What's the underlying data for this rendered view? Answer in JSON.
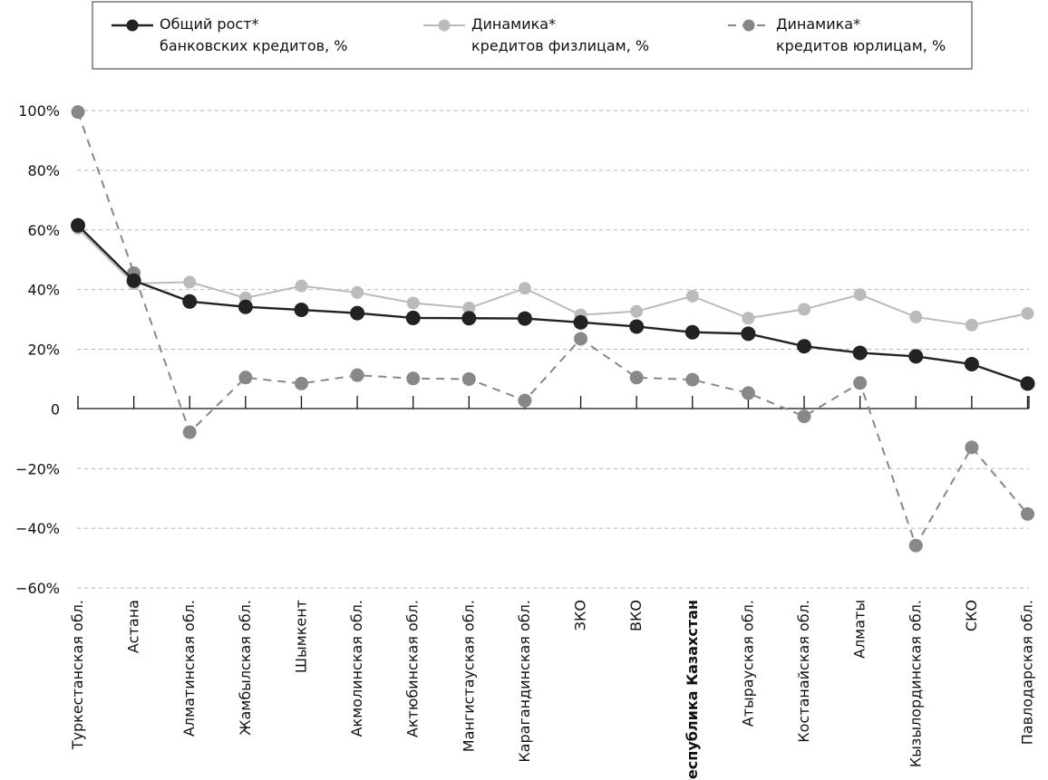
{
  "chart_data": {
    "type": "line",
    "categories": [
      "Туркестанская обл.",
      "Астана",
      "Алматинская обл.",
      "Жамбылская обл.",
      "Шымкент",
      "Акмолинская обл.",
      "Актюбинская обл.",
      "Мангистауская обл.",
      "Карагандинская обл.",
      "ЗКО",
      "ВКО",
      "Республика Казахстан",
      "Атырауская обл.",
      "Костанайская обл.",
      "Алматы",
      "Кызылординская обл.",
      "СКО",
      "Павлодарская обл."
    ],
    "highlight_category": "Республика Казахстан",
    "ylim": [
      -60,
      100
    ],
    "yticks": [
      -60,
      -40,
      -20,
      0,
      20,
      40,
      60,
      80,
      100
    ],
    "ytick_labels": [
      "−60%",
      "−40%",
      "−20%",
      "0",
      "20%",
      "40%",
      "60%",
      "80%",
      "100%"
    ],
    "grid": "horizontal dashed",
    "legend_position": "top",
    "series": [
      {
        "name": "Общий рост* банковских кредитов, %",
        "legend_lines": [
          "Общий рост*",
          "банковских кредитов, %"
        ],
        "style": "solid",
        "color": "#222222",
        "values": [
          61.5,
          43,
          36,
          34.2,
          33.2,
          32.1,
          30.5,
          30.4,
          30.3,
          29,
          27.6,
          25.7,
          25.2,
          21,
          18.8,
          17.6,
          15,
          8.5
        ]
      },
      {
        "name": "Динамика* кредитов физлицам, %",
        "legend_lines": [
          "Динамика*",
          "кредитов физлицам, %"
        ],
        "style": "solid",
        "color": "#bbbbbb",
        "values": [
          60.5,
          42,
          42.5,
          37.2,
          41.2,
          39,
          35.5,
          33.8,
          40.4,
          31.5,
          32.7,
          37.8,
          30.4,
          33.4,
          38.3,
          30.8,
          28.1,
          32
        ]
      },
      {
        "name": "Динамика* кредитов юрлицам, %",
        "legend_lines": [
          "Динамика*",
          "кредитов юрлицам, %"
        ],
        "style": "dashed",
        "color": "#888888",
        "values": [
          99.5,
          45.5,
          -7.8,
          10.5,
          8.5,
          11.3,
          10.2,
          10,
          2.8,
          23.5,
          10.5,
          9.8,
          5.3,
          -2.5,
          8.7,
          -45.8,
          -12.9,
          -35.2
        ]
      }
    ]
  }
}
